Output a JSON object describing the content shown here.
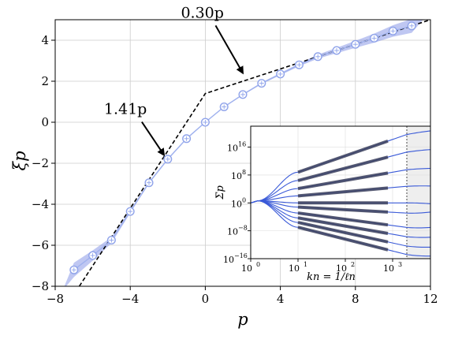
{
  "chart_data": [
    {
      "type": "line",
      "xlabel": "p",
      "ylabel": "ξp",
      "xlim": [
        -8,
        12
      ],
      "ylim": [
        -8,
        5
      ],
      "xticks": [
        -8,
        -4,
        0,
        4,
        8,
        12
      ],
      "yticks": [
        -8,
        -6,
        -4,
        -2,
        0,
        2,
        4
      ],
      "xtick_labels": [
        "−8",
        "−4",
        "0",
        "4",
        "8",
        "12"
      ],
      "ytick_labels": [
        "−8",
        "−6",
        "−4",
        "−2",
        "0",
        "2",
        "4"
      ],
      "grid": true,
      "series": [
        {
          "style": "dashed-black",
          "x": [
            -8,
            0,
            12
          ],
          "y": [
            -9.8,
            1.4,
            5.0
          ]
        },
        {
          "style": "markers-blue-with-band",
          "x": [
            -7,
            -6,
            -5,
            -4,
            -3,
            -2,
            -1,
            0,
            1,
            2,
            3,
            4,
            5,
            6,
            7,
            8,
            9,
            10,
            11
          ],
          "y": [
            -7.2,
            -6.5,
            -5.75,
            -4.35,
            -2.95,
            -1.8,
            -0.8,
            0.0,
            0.75,
            1.35,
            1.9,
            2.35,
            2.8,
            3.2,
            3.5,
            3.8,
            4.1,
            4.45,
            4.7
          ],
          "band_halfwidth": [
            0.35,
            0.25,
            0.15,
            0.08,
            0.05,
            0.04,
            0.03,
            0.02,
            0.02,
            0.03,
            0.04,
            0.05,
            0.07,
            0.1,
            0.13,
            0.17,
            0.22,
            0.28,
            0.34
          ]
        }
      ],
      "annotations": [
        {
          "text": "1.41p",
          "x": -2.2,
          "y": -1.6,
          "text_x": -5.4,
          "text_y": 0.4
        },
        {
          "text": "0.30p",
          "x": 2.0,
          "y": 2.4,
          "text_x": -1.3,
          "text_y": 5.1
        }
      ]
    },
    {
      "type": "line",
      "inset": true,
      "xscale": "log",
      "yscale": "log",
      "xlabel": "kn = 1/ℓn",
      "ylabel": "Σp",
      "xlim_exp": [
        0,
        3.8
      ],
      "ylim_exp": [
        -16,
        22
      ],
      "xticks_exp": [
        0,
        1,
        2,
        3
      ],
      "yticks_exp": [
        -16,
        -8,
        0,
        8,
        16
      ],
      "xtick_labels": [
        "10",
        "10",
        "10",
        "10"
      ],
      "xtick_exponents": [
        "0",
        "1",
        "2",
        "3"
      ],
      "ytick_labels": [
        "10",
        "10",
        "10",
        "10",
        "10"
      ],
      "ytick_exponents": [
        "−16",
        "−8",
        "0",
        "8",
        "16"
      ],
      "cutoff_exp": 3.3,
      "fit_range_exp": [
        1,
        2.9
      ],
      "curves": [
        {
          "slope": 4.7,
          "y_at_k10": 8.8
        },
        {
          "slope": 3.55,
          "y_at_k10": 6.4
        },
        {
          "slope": 2.35,
          "y_at_k10": 4.1
        },
        {
          "slope": 1.2,
          "y_at_k10": 2.0
        },
        {
          "slope": 0.0,
          "y_at_k10": 0.0
        },
        {
          "slope": -0.75,
          "y_at_k10": -1.2
        },
        {
          "slope": -1.8,
          "y_at_k10": -2.9
        },
        {
          "slope": -2.35,
          "y_at_k10": -4.3
        },
        {
          "slope": -2.95,
          "y_at_k10": -5.6
        },
        {
          "slope": -3.4,
          "y_at_k10": -7.0
        }
      ]
    }
  ]
}
